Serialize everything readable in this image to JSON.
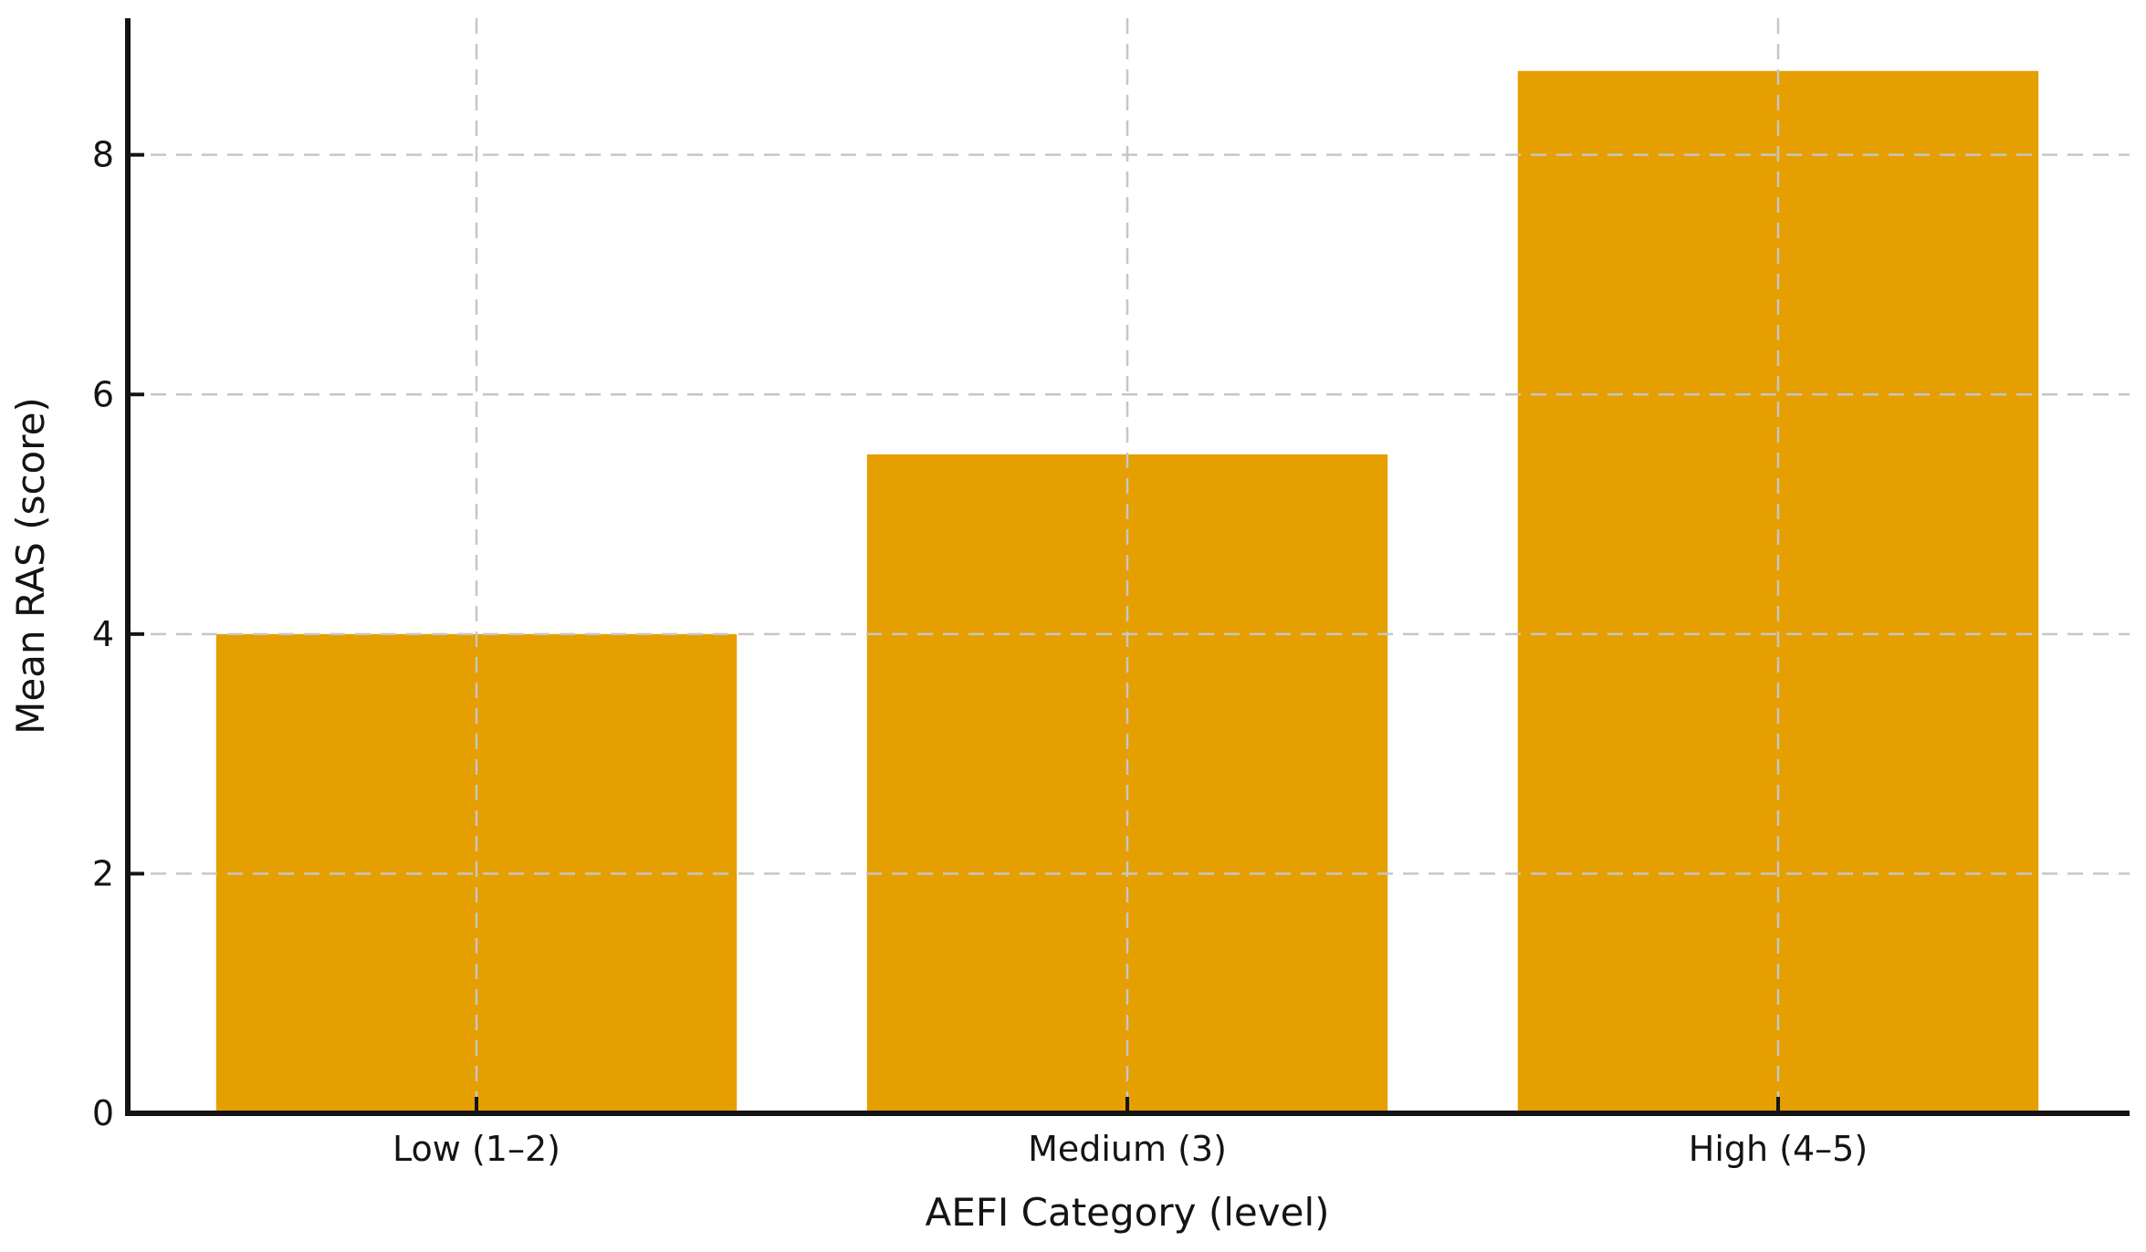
{
  "figure": {
    "background": "#ffffff",
    "title": ""
  },
  "chart_data": {
    "type": "bar",
    "categories": [
      "Low (1–2)",
      "Medium (3)",
      "High (4–5)"
    ],
    "values": [
      4.0,
      5.5,
      8.7
    ],
    "title": "",
    "xlabel": "AEFI Category (level)",
    "ylabel": "Mean RAS (score)",
    "ylim": [
      0,
      9.14
    ],
    "yticks": [
      0,
      2,
      4,
      6,
      8
    ],
    "bar_color": "#E69F00",
    "axis_color": "#141414",
    "text_color": "#141414",
    "grid_color": "#c6c6c6",
    "grid_on": true,
    "grid_line_style": "dashed",
    "legend_position": "none",
    "spines": [
      "left",
      "bottom"
    ],
    "tick_direction": "in"
  }
}
